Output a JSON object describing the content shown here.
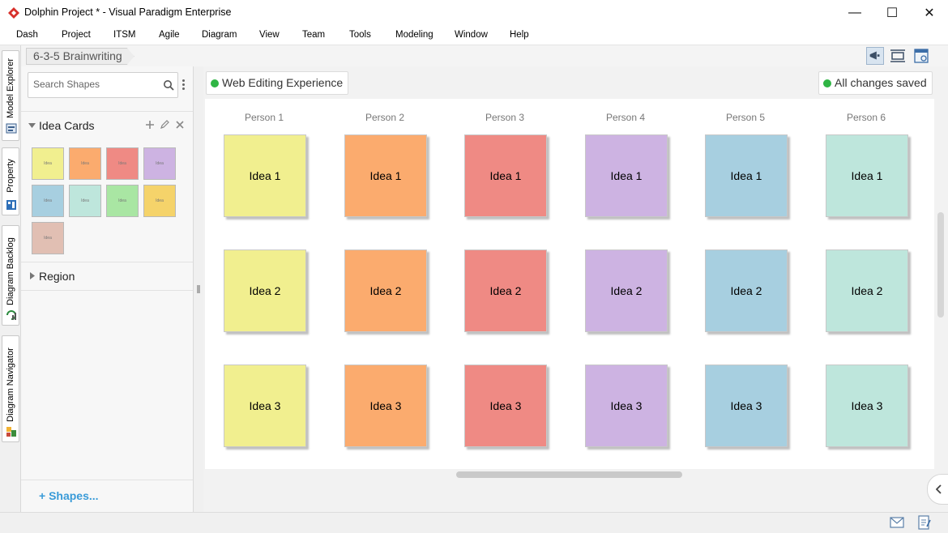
{
  "window": {
    "title": "Dolphin Project * - Visual Paradigm Enterprise",
    "minimize": "—",
    "maximize": "☐",
    "close": "✕"
  },
  "menu": [
    "Dash",
    "Project",
    "ITSM",
    "Agile",
    "Diagram",
    "View",
    "Team",
    "Tools",
    "Modeling",
    "Window",
    "Help"
  ],
  "side_tabs": [
    "Model Explorer",
    "Property",
    "Diagram Backlog",
    "Diagram Navigator"
  ],
  "breadcrumb": "6-3-5 Brainwriting",
  "shapes_panel": {
    "search_placeholder": "Search Shapes",
    "group1": "Idea Cards",
    "group2": "Region",
    "swatch_label": "Idea",
    "swatch_colors": [
      "#f1ef8f",
      "#fbab6e",
      "#ef8a84",
      "#cdb3e2",
      "#a7cfe0",
      "#bee6dc",
      "#a9e6a3",
      "#f5d36a",
      "#e1bfb3"
    ],
    "shapes_link": "+ Shapes..."
  },
  "diagram": {
    "web_status": "Web Editing Experience",
    "save_status": "All changes saved"
  },
  "brainwriting": {
    "persons": [
      "Person 1",
      "Person 2",
      "Person 3",
      "Person 4",
      "Person 5",
      "Person 6"
    ],
    "colors": [
      "#f1ef8f",
      "#fbab6e",
      "#ef8a84",
      "#cdb3e2",
      "#a7cfe0",
      "#bee6dc"
    ],
    "ideas": [
      "Idea 1",
      "Idea 2",
      "Idea 3"
    ]
  }
}
